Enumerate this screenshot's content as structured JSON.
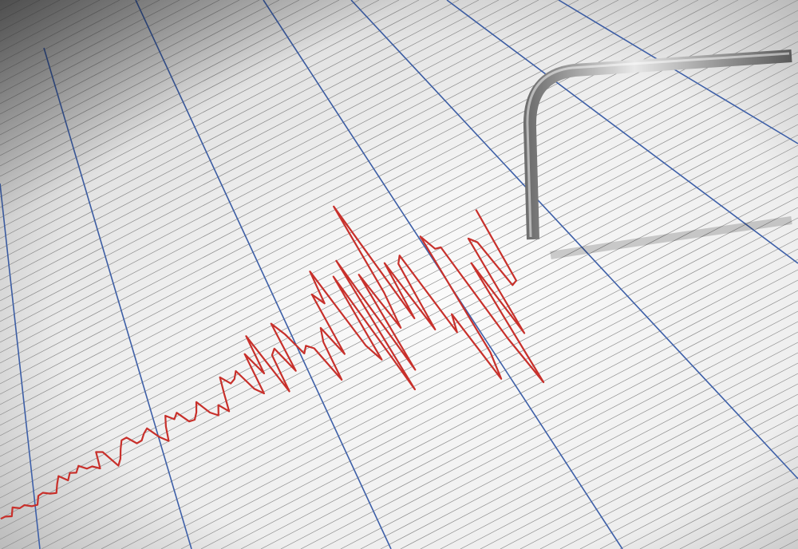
{
  "scene": {
    "subject": "seismograph",
    "colors": {
      "paper": "#f2f2f2",
      "paper_shadow": "#9a9a9a",
      "grid_fine": "#8d8d8d",
      "grid_major": "#3d5fa8",
      "trace": "#c8302b",
      "needle": "#b8b8b8"
    },
    "icons": [
      "seismograph-needle-icon"
    ]
  }
}
